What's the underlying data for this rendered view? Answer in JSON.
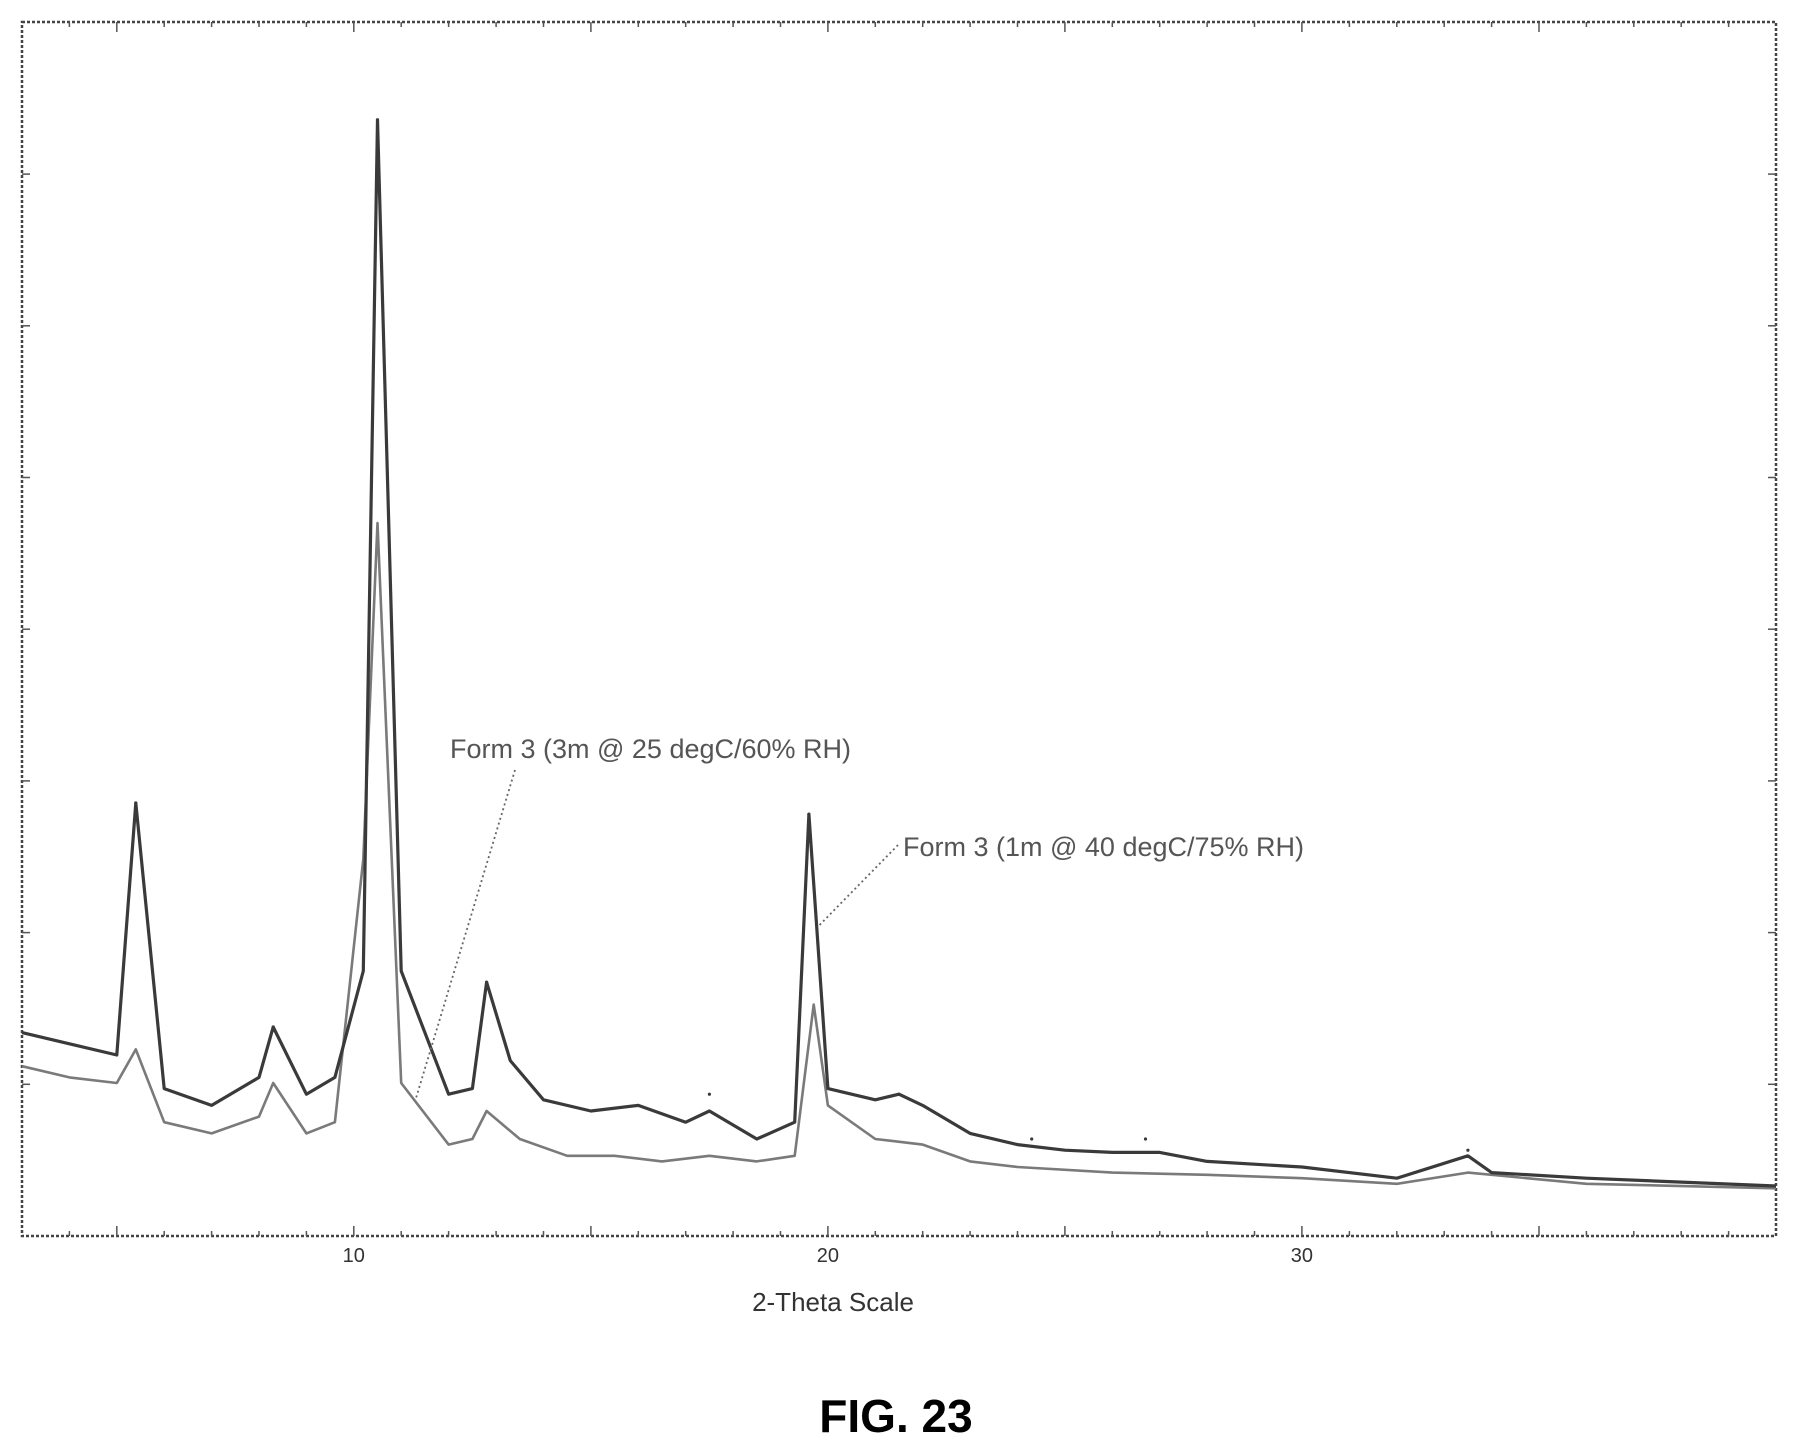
{
  "figure_label": "FIG. 23",
  "chart_data": {
    "type": "line",
    "title": "",
    "xlabel": "2-Theta Scale",
    "ylabel": "",
    "xlim": [
      3,
      40
    ],
    "ylim": [
      0,
      100
    ],
    "x_ticks": [
      10,
      20,
      30
    ],
    "x_tick_labels": [
      "10",
      "20",
      "30"
    ],
    "grid": false,
    "colors": {
      "series_a": "#3a3a3a",
      "series_b": "#7a7a7a",
      "annotation_text": "#555555"
    },
    "series": [
      {
        "name": "Form 3 (1m @ 40 degC/75% RH)",
        "peaks": [
          [
            5.4,
            35
          ],
          [
            8.3,
            15
          ],
          [
            10.5,
            96
          ],
          [
            12.8,
            19
          ],
          [
            17.5,
            9
          ],
          [
            19.6,
            34
          ],
          [
            21.5,
            9
          ],
          [
            24.3,
            5
          ],
          [
            26.7,
            5
          ],
          [
            33.5,
            4
          ]
        ],
        "points": [
          [
            3.0,
            14.5
          ],
          [
            4.0,
            13.5
          ],
          [
            5.0,
            12.5
          ],
          [
            5.4,
            35
          ],
          [
            6.0,
            9.5
          ],
          [
            7.0,
            8.0
          ],
          [
            8.0,
            10.5
          ],
          [
            8.3,
            15
          ],
          [
            9.0,
            9.0
          ],
          [
            9.6,
            10.5
          ],
          [
            10.2,
            20
          ],
          [
            10.5,
            96
          ],
          [
            11.0,
            20
          ],
          [
            12.0,
            9.0
          ],
          [
            12.5,
            9.5
          ],
          [
            12.8,
            19
          ],
          [
            13.3,
            12
          ],
          [
            14.0,
            8.5
          ],
          [
            15.0,
            7.5
          ],
          [
            16.0,
            8.0
          ],
          [
            17.0,
            6.5
          ],
          [
            17.5,
            7.5
          ],
          [
            18.5,
            5.0
          ],
          [
            19.3,
            6.5
          ],
          [
            19.6,
            34
          ],
          [
            20.0,
            9.5
          ],
          [
            21.0,
            8.5
          ],
          [
            21.5,
            9.0
          ],
          [
            22.0,
            8.0
          ],
          [
            23.0,
            5.5
          ],
          [
            24.0,
            4.5
          ],
          [
            25.0,
            4.0
          ],
          [
            26.0,
            3.8
          ],
          [
            27.0,
            3.8
          ],
          [
            28.0,
            3.0
          ],
          [
            30.0,
            2.5
          ],
          [
            32.0,
            1.5
          ],
          [
            33.5,
            3.5
          ],
          [
            34.0,
            2.0
          ],
          [
            36.0,
            1.5
          ],
          [
            40.0,
            0.8
          ]
        ]
      },
      {
        "name": "Form 3 (3m @ 25 degC/60% RH)",
        "points": [
          [
            3.0,
            11.5
          ],
          [
            4.0,
            10.5
          ],
          [
            5.0,
            10.0
          ],
          [
            5.4,
            13
          ],
          [
            6.0,
            6.5
          ],
          [
            7.0,
            5.5
          ],
          [
            8.0,
            7.0
          ],
          [
            8.3,
            10
          ],
          [
            9.0,
            5.5
          ],
          [
            9.6,
            6.5
          ],
          [
            10.2,
            30
          ],
          [
            10.5,
            60
          ],
          [
            11.0,
            10
          ],
          [
            12.0,
            4.5
          ],
          [
            12.5,
            5.0
          ],
          [
            12.8,
            7.5
          ],
          [
            13.5,
            5.0
          ],
          [
            14.5,
            3.5
          ],
          [
            15.5,
            3.5
          ],
          [
            16.5,
            3.0
          ],
          [
            17.5,
            3.5
          ],
          [
            18.5,
            3.0
          ],
          [
            19.3,
            3.5
          ],
          [
            19.7,
            17
          ],
          [
            20.0,
            8.0
          ],
          [
            21.0,
            5.0
          ],
          [
            22.0,
            4.5
          ],
          [
            23.0,
            3.0
          ],
          [
            24.0,
            2.5
          ],
          [
            26.0,
            2.0
          ],
          [
            28.0,
            1.8
          ],
          [
            30.0,
            1.5
          ],
          [
            32.0,
            1.0
          ],
          [
            33.5,
            2.0
          ],
          [
            36.0,
            1.0
          ],
          [
            40.0,
            0.6
          ]
        ]
      }
    ],
    "annotations": [
      {
        "text": "Form 3 (3m @ 25 degC/60% RH)",
        "target_series": 1
      },
      {
        "text": "Form 3 (1m @ 40 degC/75% RH)",
        "target_series": 0
      }
    ]
  }
}
